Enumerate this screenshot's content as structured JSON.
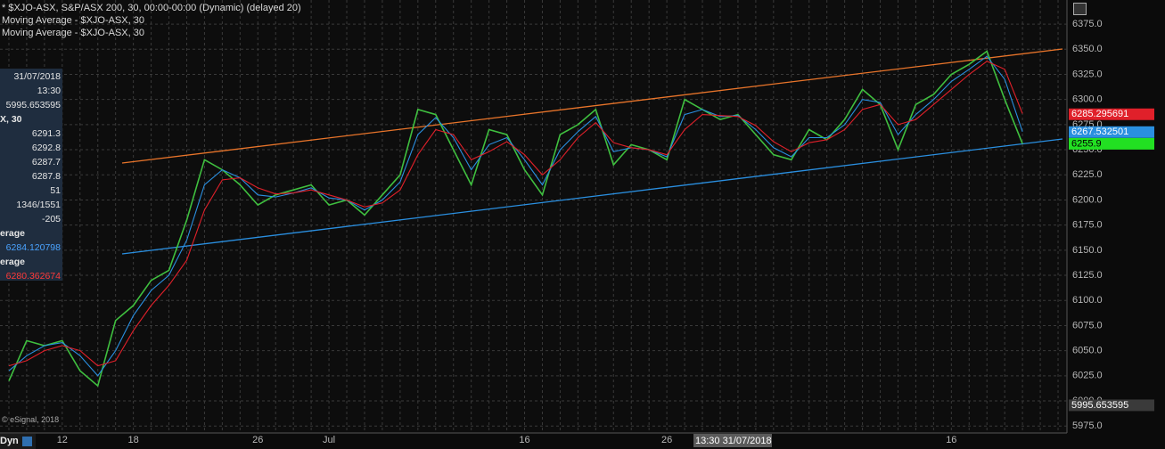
{
  "chart_data": {
    "type": "line",
    "categories": [
      null,
      null,
      null,
      "12",
      null,
      null,
      null,
      "18",
      null,
      null,
      null,
      null,
      null,
      null,
      "26",
      null,
      null,
      null,
      "Jul",
      null,
      null,
      null,
      null,
      null,
      null,
      null,
      null,
      null,
      null,
      "16",
      null,
      null,
      null,
      null,
      null,
      null,
      null,
      "26",
      null,
      null,
      null,
      null,
      null,
      null,
      null,
      null,
      null,
      null,
      null,
      null,
      null,
      null,
      null,
      "16",
      null,
      null,
      null,
      null,
      null,
      null
    ],
    "series": [
      {
        "name": "$XJO-ASX",
        "color": "#3fbf3f",
        "values": [
          6020,
          6060,
          6055,
          6060,
          6030,
          6015,
          6080,
          6095,
          6120,
          6130,
          6180,
          6240,
          6230,
          6215,
          6195,
          6205,
          6210,
          6215,
          6195,
          6200,
          6185,
          6205,
          6225,
          6290,
          6285,
          6250,
          6215,
          6270,
          6265,
          6230,
          6205,
          6265,
          6275,
          6290,
          6235,
          6255,
          6250,
          6240,
          6300,
          6290,
          6280,
          6285,
          6265,
          6245,
          6240,
          6270,
          6260,
          6280,
          6310,
          6295,
          6250,
          6295,
          6305,
          6325,
          6335,
          6348,
          6300,
          6256,
          null,
          null
        ]
      },
      {
        "name": "Moving Average",
        "color": "#2a8fe0",
        "values": [
          6030,
          6045,
          6055,
          6058,
          6045,
          6025,
          6050,
          6085,
          6110,
          6125,
          6160,
          6215,
          6230,
          6222,
          6205,
          6203,
          6207,
          6212,
          6202,
          6200,
          6190,
          6200,
          6218,
          6265,
          6282,
          6262,
          6230,
          6255,
          6262,
          6240,
          6215,
          6250,
          6268,
          6283,
          6248,
          6252,
          6250,
          6243,
          6285,
          6290,
          6283,
          6284,
          6270,
          6252,
          6243,
          6262,
          6262,
          6275,
          6300,
          6297,
          6265,
          6285,
          6300,
          6318,
          6330,
          6343,
          6320,
          6268,
          null,
          null
        ]
      },
      {
        "name": "Moving Average",
        "color": "#e0202a",
        "values": [
          6035,
          6040,
          6050,
          6055,
          6050,
          6035,
          6040,
          6070,
          6095,
          6115,
          6140,
          6190,
          6220,
          6222,
          6212,
          6206,
          6207,
          6210,
          6205,
          6200,
          6193,
          6197,
          6210,
          6245,
          6270,
          6265,
          6240,
          6248,
          6258,
          6245,
          6225,
          6240,
          6262,
          6277,
          6257,
          6252,
          6250,
          6245,
          6270,
          6285,
          6284,
          6283,
          6274,
          6258,
          6248,
          6257,
          6260,
          6270,
          6290,
          6295,
          6275,
          6280,
          6295,
          6310,
          6325,
          6338,
          6330,
          6286,
          null,
          null
        ]
      }
    ],
    "ylim": [
      5969,
      6399
    ],
    "yticks": [
      {
        "value": 5975,
        "label": "5975.0"
      },
      {
        "value": 6000,
        "label": "6000.0"
      },
      {
        "value": 6025,
        "label": "6025.0"
      },
      {
        "value": 6050,
        "label": "6050.0"
      },
      {
        "value": 6075,
        "label": "6075.0"
      },
      {
        "value": 6100,
        "label": "6100.0"
      },
      {
        "value": 6125,
        "label": "6125.0"
      },
      {
        "value": 6150,
        "label": "6150.0"
      },
      {
        "value": 6175,
        "label": "6175.0"
      },
      {
        "value": 6200,
        "label": "6200.0"
      },
      {
        "value": 6225,
        "label": "6225.0"
      },
      {
        "value": 6250,
        "label": "6250.0"
      },
      {
        "value": 6275,
        "label": "6275.0"
      },
      {
        "value": 6300,
        "label": "6300.0"
      },
      {
        "value": 6325,
        "label": "6325.0"
      },
      {
        "value": 6350,
        "label": "6350.0"
      },
      {
        "value": 6375,
        "label": "6375.0"
      }
    ],
    "grid": true,
    "price_labels": [
      {
        "value": 6285.295691,
        "color": "#e0202a"
      },
      {
        "value": 6267.532501,
        "color": "#2a8fe0"
      },
      {
        "value": 6255.9,
        "color": "#22e022"
      },
      {
        "value": 5995.653595,
        "color": "#3a3a3a"
      }
    ],
    "cursor_label": "13:30 31/07/2018"
  },
  "header": {
    "lines": [
      "* $XJO-ASX, S&P/ASX 200, 30, 00:00-00:00 (Dynamic) (delayed 20)",
      "Moving Average - $XJO-ASX, 30",
      "Moving Average - $XJO-ASX, 30"
    ]
  },
  "info_panel": {
    "rows": [
      "31/07/2018",
      "13:30",
      "5995.653595",
      "X, 30",
      "6291.3",
      "6292.8",
      "6287.7",
      "6287.8",
      "51",
      "1346/1551",
      "-205",
      "erage",
      "6284.120798",
      "erage",
      "6280.362674"
    ]
  },
  "footer": {
    "copyright": "© eSignal, 2018",
    "mode": "Dyn"
  }
}
